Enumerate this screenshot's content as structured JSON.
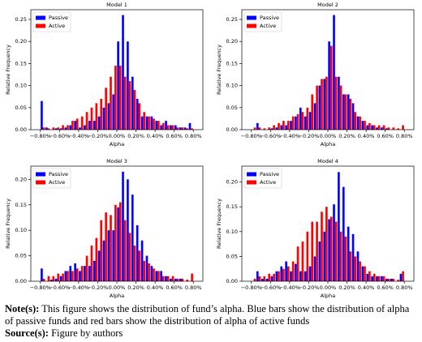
{
  "chart_data": [
    {
      "type": "histogram",
      "title": "Model 1",
      "xlabel": "Alpha",
      "ylabel": "Relative Frequency",
      "legend": "upper left",
      "bins": [
        -0.8,
        -0.75,
        -0.7,
        -0.65,
        -0.6,
        -0.55,
        -0.5,
        -0.45,
        -0.4,
        -0.35,
        -0.3,
        -0.25,
        -0.2,
        -0.15,
        -0.1,
        -0.05,
        0,
        0.05,
        0.1,
        0.15,
        0.2,
        0.25,
        0.3,
        0.35,
        0.4,
        0.45,
        0.5,
        0.55,
        0.6,
        0.65,
        0.7,
        0.75,
        0.8
      ],
      "series": [
        {
          "name": "Passive",
          "color": "#0000ff",
          "values": [
            0.065,
            0.005,
            0,
            0.003,
            0.003,
            0.005,
            0.01,
            0.02,
            0.005,
            0.01,
            0.02,
            0.02,
            0.03,
            0.05,
            0.06,
            0.08,
            0.2,
            0.26,
            0.2,
            0.12,
            0.07,
            0.03,
            0.03,
            0.03,
            0.02,
            0.01,
            0.02,
            0.01,
            0.01,
            0.005,
            0.005,
            0.015
          ]
        },
        {
          "name": "Active",
          "color": "#ff0000",
          "values": [
            0.005,
            0.003,
            0.005,
            0.005,
            0.01,
            0.01,
            0.02,
            0.025,
            0.03,
            0.04,
            0.05,
            0.06,
            0.07,
            0.095,
            0.12,
            0.145,
            0.145,
            0.12,
            0.11,
            0.09,
            0.06,
            0.04,
            0.03,
            0.025,
            0.02,
            0.015,
            0.01,
            0.01,
            0.005,
            0.005,
            0.003,
            0.003
          ]
        }
      ],
      "xlim": [
        -0.9,
        0.9
      ],
      "ylim": [
        0,
        0.272
      ],
      "xticks": [
        {
          "value": -0.8,
          "label": "−0.80%"
        },
        {
          "value": -0.6,
          "label": "−0.60%"
        },
        {
          "value": -0.4,
          "label": "−0.40%"
        },
        {
          "value": -0.2,
          "label": "−0.20%"
        },
        {
          "value": 0,
          "label": "0.00%"
        },
        {
          "value": 0.2,
          "label": "0.20%"
        },
        {
          "value": 0.4,
          "label": "0.40%"
        },
        {
          "value": 0.6,
          "label": "0.60%"
        },
        {
          "value": 0.8,
          "label": "0.80%"
        }
      ],
      "yticks": [
        {
          "value": 0,
          "label": "0.00"
        },
        {
          "value": 0.05,
          "label": "0.05"
        },
        {
          "value": 0.1,
          "label": "0.10"
        },
        {
          "value": 0.15,
          "label": "0.15"
        },
        {
          "value": 0.2,
          "label": "0.20"
        },
        {
          "value": 0.25,
          "label": "0.25"
        }
      ]
    },
    {
      "type": "histogram",
      "title": "Model 2",
      "xlabel": "Alpha",
      "ylabel": "Relative Frequency",
      "legend": "upper left",
      "bins": [
        -0.8,
        -0.75,
        -0.7,
        -0.65,
        -0.6,
        -0.55,
        -0.5,
        -0.45,
        -0.4,
        -0.35,
        -0.3,
        -0.25,
        -0.2,
        -0.15,
        -0.1,
        -0.05,
        0,
        0.05,
        0.1,
        0.15,
        0.2,
        0.25,
        0.3,
        0.35,
        0.4,
        0.45,
        0.5,
        0.55,
        0.6,
        0.65,
        0.7,
        0.75,
        0.8
      ],
      "series": [
        {
          "name": "Passive",
          "color": "#0000ff",
          "values": [
            0,
            0.015,
            0,
            0,
            0.003,
            0.005,
            0.01,
            0.01,
            0.02,
            0.03,
            0.05,
            0.03,
            0.04,
            0.06,
            0.1,
            0.115,
            0.2,
            0.26,
            0.12,
            0.08,
            0.08,
            0.06,
            0.03,
            0.02,
            0.01,
            0.01,
            0.005,
            0.005,
            0.003,
            0,
            0,
            0
          ]
        },
        {
          "name": "Active",
          "color": "#ff0000",
          "values": [
            0.005,
            0.005,
            0.003,
            0.005,
            0.01,
            0.015,
            0.02,
            0.02,
            0.03,
            0.035,
            0.04,
            0.05,
            0.08,
            0.1,
            0.115,
            0.12,
            0.19,
            0.12,
            0.1,
            0.08,
            0.07,
            0.04,
            0.03,
            0.02,
            0.015,
            0.01,
            0.01,
            0.01,
            0.005,
            0.005,
            0.003,
            0.01
          ]
        }
      ],
      "xlim": [
        -0.9,
        0.9
      ],
      "ylim": [
        0,
        0.272
      ],
      "xticks": [
        {
          "value": -0.8,
          "label": "−0.80%"
        },
        {
          "value": -0.6,
          "label": "−0.60%"
        },
        {
          "value": -0.4,
          "label": "−0.40%"
        },
        {
          "value": -0.2,
          "label": "−0.20%"
        },
        {
          "value": 0,
          "label": "0.00%"
        },
        {
          "value": 0.2,
          "label": "0.20%"
        },
        {
          "value": 0.4,
          "label": "0.40%"
        },
        {
          "value": 0.6,
          "label": "0.60%"
        },
        {
          "value": 0.8,
          "label": "0.80%"
        }
      ],
      "yticks": [
        {
          "value": 0,
          "label": "0.00"
        },
        {
          "value": 0.05,
          "label": "0.05"
        },
        {
          "value": 0.1,
          "label": "0.10"
        },
        {
          "value": 0.15,
          "label": "0.15"
        },
        {
          "value": 0.2,
          "label": "0.20"
        },
        {
          "value": 0.25,
          "label": "0.25"
        }
      ]
    },
    {
      "type": "histogram",
      "title": "Model 3",
      "xlabel": "Alpha",
      "ylabel": "Relative Frequency",
      "legend": "upper left",
      "bins": [
        -0.8,
        -0.75,
        -0.7,
        -0.65,
        -0.6,
        -0.55,
        -0.5,
        -0.45,
        -0.4,
        -0.35,
        -0.3,
        -0.25,
        -0.2,
        -0.15,
        -0.1,
        -0.05,
        0,
        0.05,
        0.1,
        0.15,
        0.2,
        0.25,
        0.3,
        0.35,
        0.4,
        0.45,
        0.5,
        0.55,
        0.6,
        0.65,
        0.7,
        0.75,
        0.8
      ],
      "series": [
        {
          "name": "Passive",
          "color": "#0000ff",
          "values": [
            0.025,
            0,
            0.003,
            0.005,
            0.01,
            0.02,
            0.03,
            0.035,
            0.02,
            0.03,
            0.03,
            0.04,
            0.06,
            0.08,
            0.1,
            0.1,
            0.145,
            0.215,
            0.2,
            0.17,
            0.11,
            0.08,
            0.05,
            0.03,
            0.02,
            0.02,
            0.01,
            0.005,
            0.005,
            0.005,
            0,
            0
          ]
        },
        {
          "name": "Active",
          "color": "#ff0000",
          "values": [
            0.005,
            0.01,
            0.01,
            0.015,
            0.015,
            0.02,
            0.02,
            0.025,
            0.03,
            0.05,
            0.07,
            0.085,
            0.12,
            0.135,
            0.13,
            0.15,
            0.155,
            0.12,
            0.095,
            0.07,
            0.06,
            0.04,
            0.035,
            0.025,
            0.02,
            0.01,
            0.01,
            0.01,
            0.005,
            0.005,
            0.003,
            0.015
          ]
        }
      ],
      "xlim": [
        -0.9,
        0.9
      ],
      "ylim": [
        0,
        0.226
      ],
      "xticks": [
        {
          "value": -0.8,
          "label": "−0.80%"
        },
        {
          "value": -0.6,
          "label": "−0.60%"
        },
        {
          "value": -0.4,
          "label": "−0.40%"
        },
        {
          "value": -0.2,
          "label": "−0.20%"
        },
        {
          "value": 0,
          "label": "0.00%"
        },
        {
          "value": 0.2,
          "label": "0.20%"
        },
        {
          "value": 0.4,
          "label": "0.40%"
        },
        {
          "value": 0.6,
          "label": "0.60%"
        },
        {
          "value": 0.8,
          "label": "0.80%"
        }
      ],
      "yticks": [
        {
          "value": 0,
          "label": "0.00"
        },
        {
          "value": 0.05,
          "label": "0.05"
        },
        {
          "value": 0.1,
          "label": "0.10"
        },
        {
          "value": 0.15,
          "label": "0.15"
        },
        {
          "value": 0.2,
          "label": "0.20"
        }
      ]
    },
    {
      "type": "histogram",
      "title": "Model 4",
      "xlabel": "Alpha",
      "ylabel": "Relative Frequency",
      "legend": "upper left",
      "bins": [
        -0.8,
        -0.75,
        -0.7,
        -0.65,
        -0.6,
        -0.55,
        -0.5,
        -0.45,
        -0.4,
        -0.35,
        -0.3,
        -0.25,
        -0.2,
        -0.15,
        -0.1,
        -0.05,
        0,
        0.05,
        0.1,
        0.15,
        0.2,
        0.25,
        0.3,
        0.35,
        0.4,
        0.45,
        0.5,
        0.55,
        0.6,
        0.65,
        0.7,
        0.75,
        0.8
      ],
      "series": [
        {
          "name": "Passive",
          "color": "#0000ff",
          "values": [
            0,
            0.02,
            0.005,
            0.005,
            0.01,
            0.02,
            0.03,
            0.04,
            0.02,
            0.035,
            0.02,
            0.02,
            0.03,
            0.05,
            0.08,
            0.1,
            0.125,
            0.155,
            0.22,
            0.19,
            0.11,
            0.095,
            0.06,
            0.03,
            0.015,
            0.01,
            0.01,
            0.01,
            0.005,
            0.005,
            0,
            0.015
          ]
        },
        {
          "name": "Active",
          "color": "#ff0000",
          "values": [
            0.005,
            0.01,
            0.01,
            0.015,
            0.015,
            0.02,
            0.025,
            0.03,
            0.04,
            0.07,
            0.08,
            0.1,
            0.12,
            0.12,
            0.14,
            0.15,
            0.13,
            0.12,
            0.1,
            0.09,
            0.06,
            0.05,
            0.04,
            0.03,
            0.02,
            0.015,
            0.01,
            0.01,
            0.005,
            0.005,
            0.003,
            0.02
          ]
        }
      ],
      "xlim": [
        -0.9,
        0.9
      ],
      "ylim": [
        0,
        0.232
      ],
      "xticks": [
        {
          "value": -0.8,
          "label": "−0.80%"
        },
        {
          "value": -0.6,
          "label": "−0.60%"
        },
        {
          "value": -0.4,
          "label": "−0.40%"
        },
        {
          "value": -0.2,
          "label": "−0.20%"
        },
        {
          "value": 0,
          "label": "0.00%"
        },
        {
          "value": 0.2,
          "label": "0.20%"
        },
        {
          "value": 0.4,
          "label": "0.40%"
        },
        {
          "value": 0.6,
          "label": "0.60%"
        },
        {
          "value": 0.8,
          "label": "0.80%"
        }
      ],
      "yticks": [
        {
          "value": 0,
          "label": "0.00"
        },
        {
          "value": 0.05,
          "label": "0.05"
        },
        {
          "value": 0.1,
          "label": "0.10"
        },
        {
          "value": 0.15,
          "label": "0.15"
        },
        {
          "value": 0.2,
          "label": "0.20"
        }
      ]
    }
  ],
  "note": {
    "note_label": "Note(s):",
    "note_text": "This figure shows the distribution of fund’s alpha. Blue bars show the distribution of alpha of passive funds and red bars show the distribution of alpha of active funds",
    "source_label": "Source(s):",
    "source_text": "Figure by authors"
  }
}
